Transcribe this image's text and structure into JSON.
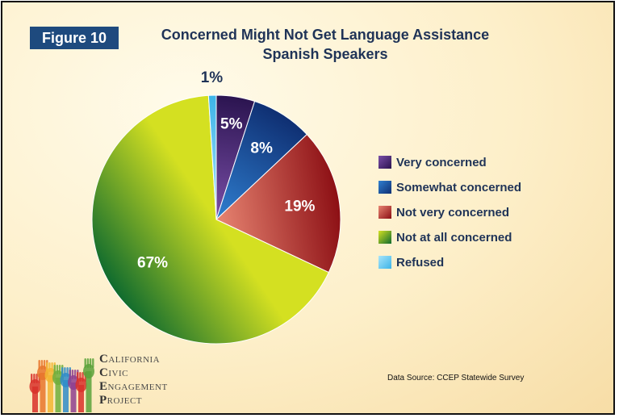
{
  "figure_label": "Figure 10",
  "chart_data": {
    "type": "pie",
    "title": "Concerned Might Not Get Language Assistance",
    "subtitle": "Spanish Speakers",
    "slices": [
      {
        "label": "Very concerned",
        "value": 5,
        "value_label": "5%",
        "color_dark": "#2b1450",
        "color_light": "#7a4fa8"
      },
      {
        "label": "Somewhat concerned",
        "value": 8,
        "value_label": "8%",
        "color_dark": "#0f2f72",
        "color_light": "#2f7fd0"
      },
      {
        "label": "Not very concerned",
        "value": 19,
        "value_label": "19%",
        "color_dark": "#8c0f14",
        "color_light": "#e88572"
      },
      {
        "label": "Not at all concerned",
        "value": 67,
        "value_label": "67%",
        "color_dark": "#0f6b2e",
        "color_light": "#d4e021"
      },
      {
        "label": "Refused",
        "value": 1,
        "value_label": "1%",
        "color_dark": "#3cb4e8",
        "color_light": "#a8e4fa"
      }
    ],
    "legend_position": "right"
  },
  "source": "Data Source: CCEP Statewide Survey",
  "logo": {
    "lines": [
      {
        "cap": "C",
        "rest": "ALIFORNIA"
      },
      {
        "cap": "C",
        "rest": "IVIC"
      },
      {
        "cap": "E",
        "rest": "NGAGEMENT"
      },
      {
        "cap": "P",
        "rest": "ROJECT"
      }
    ],
    "hand_colors": [
      "#d8312a",
      "#e8762c",
      "#f2b632",
      "#6fae3c",
      "#2f8cc9",
      "#8e3f8f",
      "#d8312a",
      "#5aa23a"
    ]
  }
}
